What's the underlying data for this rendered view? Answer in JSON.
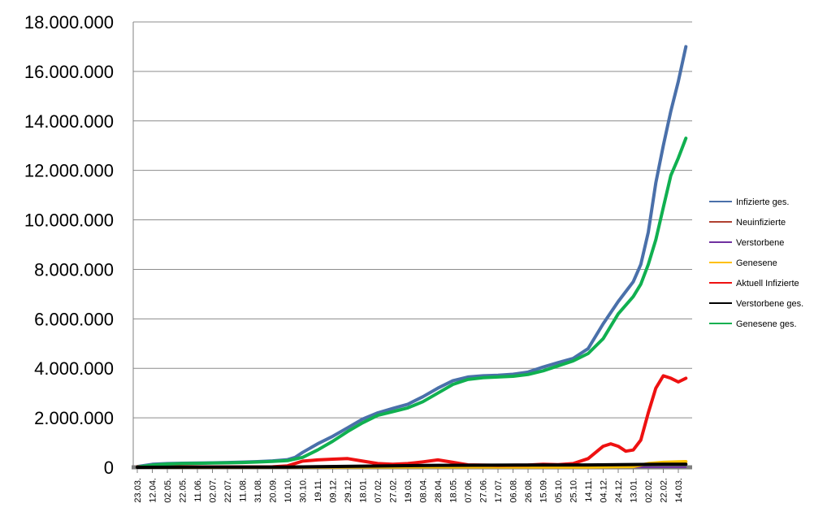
{
  "chart_data": {
    "type": "line",
    "title": "",
    "xlabel": "",
    "ylabel": "",
    "ylim": [
      0,
      18000000
    ],
    "y_ticks": [
      0,
      2000000,
      4000000,
      6000000,
      8000000,
      10000000,
      12000000,
      14000000,
      16000000,
      18000000
    ],
    "y_tick_labels": [
      "0",
      "2.000.000",
      "4.000.000",
      "6.000.000",
      "8.000.000",
      "10.000.000",
      "12.000.000",
      "14.000.000",
      "16.000.000",
      "18.000.000"
    ],
    "x_tick_labels": [
      "23.03.",
      "12.04.",
      "02.05.",
      "22.05.",
      "11.06.",
      "02.07.",
      "22.07.",
      "11.08.",
      "31.08.",
      "20.09.",
      "10.10.",
      "30.10.",
      "19.11.",
      "09.12.",
      "29.12.",
      "18.01.",
      "07.02.",
      "27.02.",
      "19.03.",
      "08.04.",
      "28.04.",
      "18.05.",
      "07.06.",
      "27.06.",
      "17.07.",
      "06.08.",
      "26.08.",
      "15.09.",
      "05.10.",
      "25.10.",
      "14.11.",
      "04.12.",
      "24.12.",
      "13.01.",
      "02.02.",
      "22.02.",
      "14.03."
    ],
    "grid": true,
    "legend_position": "right",
    "series": [
      {
        "name": "Infizierte ges.",
        "color": "#4a70aa",
        "points": [
          [
            0,
            30000
          ],
          [
            1,
            120000
          ],
          [
            2,
            150000
          ],
          [
            3,
            165000
          ],
          [
            4,
            170000
          ],
          [
            5,
            180000
          ],
          [
            6,
            195000
          ],
          [
            7,
            210000
          ],
          [
            8,
            230000
          ],
          [
            9,
            260000
          ],
          [
            10,
            310000
          ],
          [
            10.5,
            400000
          ],
          [
            11,
            600000
          ],
          [
            12,
            950000
          ],
          [
            13,
            1250000
          ],
          [
            14,
            1600000
          ],
          [
            15,
            1950000
          ],
          [
            16,
            2200000
          ],
          [
            17,
            2380000
          ],
          [
            18,
            2550000
          ],
          [
            19,
            2850000
          ],
          [
            20,
            3200000
          ],
          [
            21,
            3500000
          ],
          [
            22,
            3650000
          ],
          [
            23,
            3700000
          ],
          [
            24,
            3720000
          ],
          [
            25,
            3760000
          ],
          [
            26,
            3850000
          ],
          [
            27,
            4050000
          ],
          [
            28,
            4230000
          ],
          [
            29,
            4400000
          ],
          [
            30,
            4800000
          ],
          [
            31,
            5800000
          ],
          [
            32,
            6700000
          ],
          [
            33,
            7500000
          ],
          [
            33.5,
            8200000
          ],
          [
            34,
            9500000
          ],
          [
            34.5,
            11500000
          ],
          [
            35,
            13000000
          ],
          [
            35.5,
            14400000
          ],
          [
            36,
            15600000
          ],
          [
            36.5,
            17000000
          ]
        ]
      },
      {
        "name": "Neuinfizierte",
        "color": "#b04030",
        "points": [
          [
            0,
            5000
          ],
          [
            2,
            4000
          ],
          [
            6,
            3000
          ],
          [
            10,
            8000
          ],
          [
            12,
            20000
          ],
          [
            14,
            20000
          ],
          [
            16,
            10000
          ],
          [
            18,
            12000
          ],
          [
            20,
            18000
          ],
          [
            22,
            6000
          ],
          [
            26,
            8000
          ],
          [
            28,
            10000
          ],
          [
            30,
            15000
          ],
          [
            31,
            45000
          ],
          [
            32,
            55000
          ],
          [
            33,
            40000
          ],
          [
            34,
            120000
          ],
          [
            35,
            180000
          ],
          [
            36,
            200000
          ],
          [
            36.5,
            210000
          ]
        ]
      },
      {
        "name": "Verstorbene",
        "color": "#7030a0",
        "points": [
          [
            0,
            1000
          ],
          [
            10,
            500
          ],
          [
            20,
            1000
          ],
          [
            30,
            800
          ],
          [
            33,
            1500
          ],
          [
            36,
            2000
          ],
          [
            36.5,
            2500
          ]
        ]
      },
      {
        "name": "Genesene",
        "color": "#ffc000",
        "points": [
          [
            0,
            3000
          ],
          [
            10,
            5000
          ],
          [
            20,
            15000
          ],
          [
            30,
            10000
          ],
          [
            33,
            30000
          ],
          [
            34,
            150000
          ],
          [
            35,
            200000
          ],
          [
            36,
            220000
          ],
          [
            36.5,
            230000
          ]
        ]
      },
      {
        "name": "Aktuell Infizierte",
        "color": "#ee1111",
        "points": [
          [
            0,
            20000
          ],
          [
            1,
            60000
          ],
          [
            2,
            30000
          ],
          [
            4,
            15000
          ],
          [
            8,
            15000
          ],
          [
            9,
            20000
          ],
          [
            10,
            60000
          ],
          [
            11,
            250000
          ],
          [
            12,
            300000
          ],
          [
            13,
            330000
          ],
          [
            14,
            350000
          ],
          [
            15,
            250000
          ],
          [
            16,
            150000
          ],
          [
            17,
            120000
          ],
          [
            18,
            150000
          ],
          [
            19,
            220000
          ],
          [
            20,
            300000
          ],
          [
            21,
            200000
          ],
          [
            22,
            100000
          ],
          [
            24,
            80000
          ],
          [
            26,
            90000
          ],
          [
            27,
            120000
          ],
          [
            28,
            110000
          ],
          [
            29,
            150000
          ],
          [
            30,
            350000
          ],
          [
            31,
            850000
          ],
          [
            31.5,
            950000
          ],
          [
            32,
            850000
          ],
          [
            32.5,
            650000
          ],
          [
            33,
            700000
          ],
          [
            33.5,
            1100000
          ],
          [
            34,
            2200000
          ],
          [
            34.5,
            3200000
          ],
          [
            35,
            3700000
          ],
          [
            35.5,
            3600000
          ],
          [
            36,
            3450000
          ],
          [
            36.5,
            3600000
          ]
        ]
      },
      {
        "name": "Verstorbene ges.",
        "color": "#000000",
        "points": [
          [
            0,
            1000
          ],
          [
            5,
            9000
          ],
          [
            10,
            10000
          ],
          [
            15,
            45000
          ],
          [
            20,
            80000
          ],
          [
            25,
            90000
          ],
          [
            30,
            95000
          ],
          [
            35,
            120000
          ],
          [
            36.5,
            125000
          ]
        ]
      },
      {
        "name": "Genesene ges.",
        "color": "#10b050",
        "points": [
          [
            0,
            10000
          ],
          [
            1,
            90000
          ],
          [
            2,
            130000
          ],
          [
            3,
            150000
          ],
          [
            4,
            160000
          ],
          [
            5,
            170000
          ],
          [
            6,
            180000
          ],
          [
            7,
            195000
          ],
          [
            8,
            215000
          ],
          [
            9,
            240000
          ],
          [
            10,
            270000
          ],
          [
            11,
            400000
          ],
          [
            12,
            700000
          ],
          [
            13,
            1050000
          ],
          [
            14,
            1450000
          ],
          [
            15,
            1800000
          ],
          [
            16,
            2100000
          ],
          [
            17,
            2250000
          ],
          [
            18,
            2400000
          ],
          [
            19,
            2650000
          ],
          [
            20,
            3000000
          ],
          [
            21,
            3350000
          ],
          [
            22,
            3550000
          ],
          [
            23,
            3620000
          ],
          [
            24,
            3650000
          ],
          [
            25,
            3680000
          ],
          [
            26,
            3750000
          ],
          [
            27,
            3900000
          ],
          [
            28,
            4100000
          ],
          [
            29,
            4300000
          ],
          [
            30,
            4600000
          ],
          [
            31,
            5200000
          ],
          [
            32,
            6200000
          ],
          [
            33,
            6900000
          ],
          [
            33.5,
            7400000
          ],
          [
            34,
            8200000
          ],
          [
            34.5,
            9200000
          ],
          [
            35,
            10500000
          ],
          [
            35.5,
            11800000
          ],
          [
            36,
            12500000
          ],
          [
            36.5,
            13300000
          ]
        ]
      }
    ]
  }
}
